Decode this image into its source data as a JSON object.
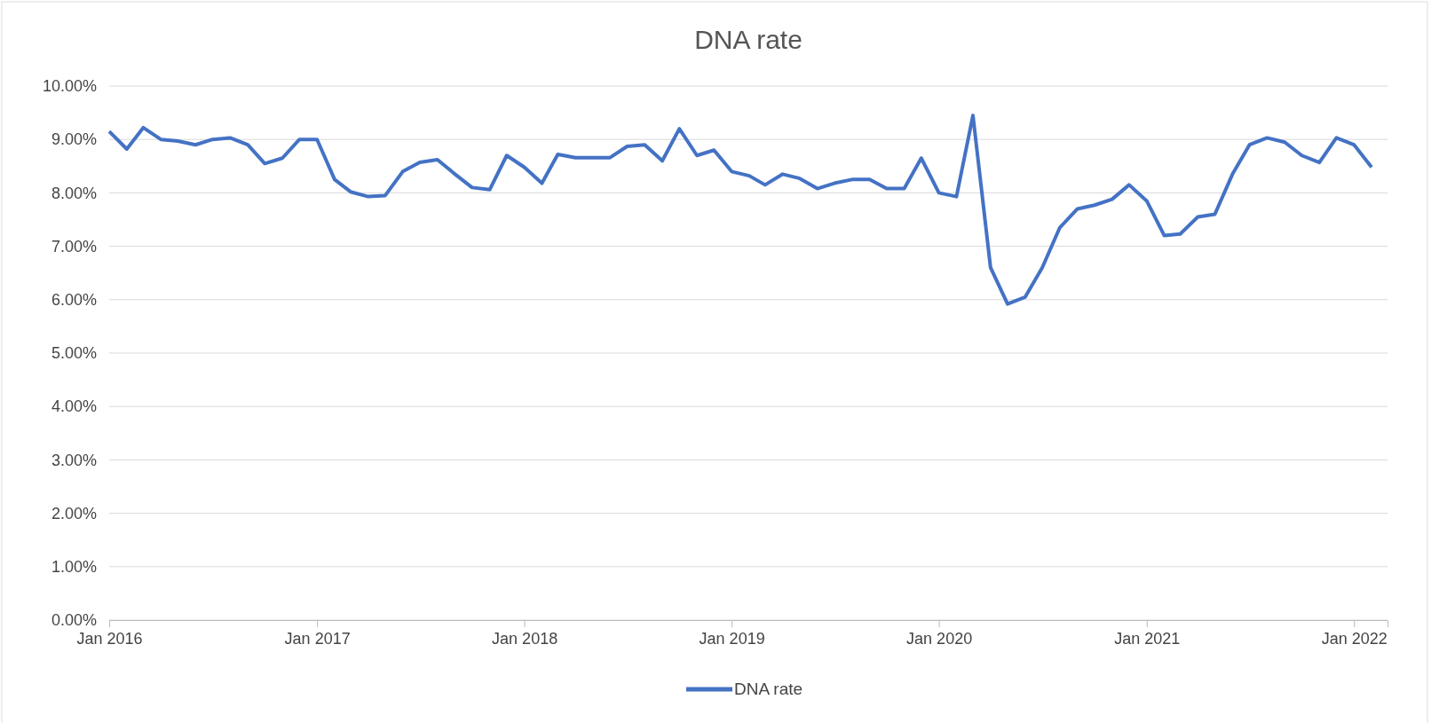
{
  "chart_data": {
    "type": "line",
    "title": "DNA rate",
    "x": [
      "2016-01",
      "2016-02",
      "2016-03",
      "2016-04",
      "2016-05",
      "2016-06",
      "2016-07",
      "2016-08",
      "2016-09",
      "2016-10",
      "2016-11",
      "2016-12",
      "2017-01",
      "2017-02",
      "2017-03",
      "2017-04",
      "2017-05",
      "2017-06",
      "2017-07",
      "2017-08",
      "2017-09",
      "2017-10",
      "2017-11",
      "2017-12",
      "2018-01",
      "2018-02",
      "2018-03",
      "2018-04",
      "2018-05",
      "2018-06",
      "2018-07",
      "2018-08",
      "2018-09",
      "2018-10",
      "2018-11",
      "2018-12",
      "2019-01",
      "2019-02",
      "2019-03",
      "2019-04",
      "2019-05",
      "2019-06",
      "2019-07",
      "2019-08",
      "2019-09",
      "2019-10",
      "2019-11",
      "2019-12",
      "2020-01",
      "2020-02",
      "2020-03",
      "2020-04",
      "2020-05",
      "2020-06",
      "2020-07",
      "2020-08",
      "2020-09",
      "2020-10",
      "2020-11",
      "2020-12",
      "2021-01",
      "2021-02",
      "2021-03",
      "2021-04",
      "2021-05",
      "2021-06",
      "2021-07",
      "2021-08",
      "2021-09",
      "2021-10",
      "2021-11",
      "2021-12",
      "2022-01",
      "2022-02"
    ],
    "series": [
      {
        "name": "DNA rate",
        "color": "#4472c4",
        "values": [
          9.15,
          8.82,
          9.22,
          9.0,
          8.97,
          8.9,
          9.0,
          9.03,
          8.9,
          8.55,
          8.65,
          9.0,
          9.0,
          8.25,
          8.02,
          7.93,
          7.95,
          8.4,
          8.57,
          8.62,
          8.35,
          8.1,
          8.06,
          8.7,
          8.48,
          8.18,
          8.72,
          8.66,
          8.66,
          8.66,
          8.87,
          8.9,
          8.6,
          9.2,
          8.7,
          8.8,
          8.4,
          8.32,
          8.15,
          8.35,
          8.27,
          8.08,
          8.18,
          8.25,
          8.25,
          8.08,
          8.08,
          8.65,
          8.0,
          7.93,
          9.45,
          6.6,
          5.92,
          6.05,
          6.6,
          7.35,
          7.7,
          7.77,
          7.88,
          8.15,
          7.85,
          7.2,
          7.23,
          7.55,
          7.6,
          8.35,
          8.9,
          9.03,
          8.95,
          8.7,
          8.57,
          9.03,
          8.9,
          8.48
        ]
      }
    ],
    "xlim": [
      "2016-01",
      "2022-03"
    ],
    "xticks": [
      {
        "value": "2016-01",
        "label": "Jan 2016"
      },
      {
        "value": "2017-01",
        "label": "Jan 2017"
      },
      {
        "value": "2018-01",
        "label": "Jan 2018"
      },
      {
        "value": "2019-01",
        "label": "Jan 2019"
      },
      {
        "value": "2020-01",
        "label": "Jan 2020"
      },
      {
        "value": "2021-01",
        "label": "Jan 2021"
      },
      {
        "value": "2022-01",
        "label": "Jan 2022"
      }
    ],
    "ylim": [
      0,
      10
    ],
    "yticks": [
      {
        "value": 0,
        "label": "0.00%"
      },
      {
        "value": 1,
        "label": "1.00%"
      },
      {
        "value": 2,
        "label": "2.00%"
      },
      {
        "value": 3,
        "label": "3.00%"
      },
      {
        "value": 4,
        "label": "4.00%"
      },
      {
        "value": 5,
        "label": "5.00%"
      },
      {
        "value": 6,
        "label": "6.00%"
      },
      {
        "value": 7,
        "label": "7.00%"
      },
      {
        "value": 8,
        "label": "8.00%"
      },
      {
        "value": 9,
        "label": "9.00%"
      },
      {
        "value": 10,
        "label": "10.00%"
      }
    ],
    "grid": "y",
    "legend": "bottom"
  }
}
